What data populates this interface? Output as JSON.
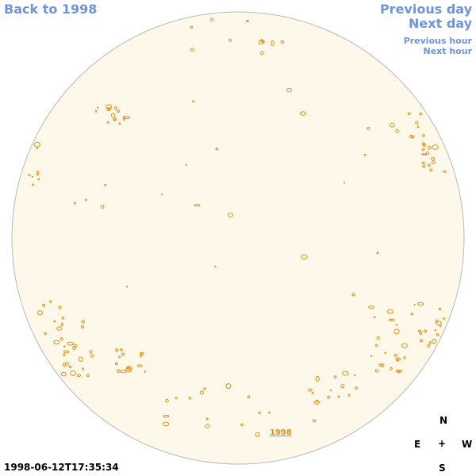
{
  "nav": {
    "back": "Back to 1998",
    "previous_day": "Previous day",
    "next_day": "Next day",
    "previous_hour": "Previous hour",
    "next_hour": "Next hour"
  },
  "timestamp": "1998-06-12T17:35:34",
  "year_label": "1998",
  "compass": {
    "north": "N",
    "east": "E",
    "center": "+",
    "west": "W",
    "south": "S"
  },
  "colors": {
    "disk_fill": "#fdf8ea",
    "disk_stroke": "#b9b9b9",
    "contour": "#e39114",
    "link": "#6f95d8"
  }
}
